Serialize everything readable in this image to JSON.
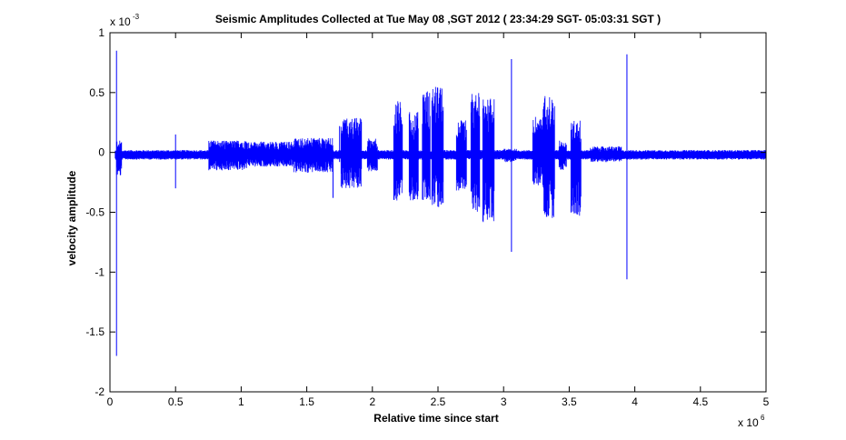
{
  "chart_data": {
    "type": "line",
    "title": "Seismic Amplitudes Collected at Tue May 08 ,SGT 2012 (  23:34:29 SGT- 05:03:31 SGT )",
    "xlabel": "Relative time since start",
    "ylabel": "velocity amplitude",
    "xlim": [
      0,
      5
    ],
    "ylim": [
      -2,
      1
    ],
    "x_ticks": [
      "0",
      "0.5",
      "1",
      "1.5",
      "2",
      "2.5",
      "3",
      "3.5",
      "4",
      "4.5",
      "5"
    ],
    "y_ticks": [
      "-2",
      "-1.5",
      "-1",
      "-0.5",
      "0",
      "0.5",
      "1"
    ],
    "x_multiplier": {
      "base": "x 10",
      "exponent": "6"
    },
    "y_multiplier": {
      "base": "x 10",
      "exponent": "-3"
    },
    "line_color": "#0000ff",
    "grid": false,
    "baseline": -0.02,
    "x_start": 0.04,
    "x_end": 5.0,
    "bursts": [
      {
        "x0": 0.05,
        "x1": 0.09,
        "max": 0.1,
        "min": -0.2
      },
      {
        "x0": 0.75,
        "x1": 1.05,
        "max": 0.1,
        "min": -0.15
      },
      {
        "x0": 1.05,
        "x1": 1.4,
        "max": 0.09,
        "min": -0.12
      },
      {
        "x0": 1.4,
        "x1": 1.7,
        "max": 0.12,
        "min": -0.17
      },
      {
        "x0": 1.76,
        "x1": 1.92,
        "max": 0.29,
        "min": -0.3
      },
      {
        "x0": 1.96,
        "x1": 2.04,
        "max": 0.12,
        "min": -0.16
      },
      {
        "x0": 2.16,
        "x1": 2.23,
        "max": 0.47,
        "min": -0.42
      },
      {
        "x0": 2.28,
        "x1": 2.35,
        "max": 0.34,
        "min": -0.4
      },
      {
        "x0": 2.38,
        "x1": 2.44,
        "max": 0.52,
        "min": -0.4
      },
      {
        "x0": 2.45,
        "x1": 2.54,
        "max": 0.55,
        "min": -0.46
      },
      {
        "x0": 2.64,
        "x1": 2.72,
        "max": 0.27,
        "min": -0.32
      },
      {
        "x0": 2.75,
        "x1": 2.82,
        "max": 0.5,
        "min": -0.5
      },
      {
        "x0": 2.84,
        "x1": 2.93,
        "max": 0.45,
        "min": -0.6
      },
      {
        "x0": 3.0,
        "x1": 3.1,
        "max": 0.03,
        "min": -0.08
      },
      {
        "x0": 3.22,
        "x1": 3.3,
        "max": 0.3,
        "min": -0.28
      },
      {
        "x0": 3.3,
        "x1": 3.39,
        "max": 0.48,
        "min": -0.55
      },
      {
        "x0": 3.42,
        "x1": 3.48,
        "max": 0.1,
        "min": -0.15
      },
      {
        "x0": 3.51,
        "x1": 3.59,
        "max": 0.27,
        "min": -0.53
      },
      {
        "x0": 3.66,
        "x1": 3.9,
        "max": 0.05,
        "min": -0.08
      }
    ],
    "spikes": [
      {
        "x": 0.05,
        "max": 0.85,
        "min": -1.7
      },
      {
        "x": 0.5,
        "max": 0.15,
        "min": -0.3
      },
      {
        "x": 1.75,
        "max": 0.22,
        "min": -0.08
      },
      {
        "x": 1.7,
        "max": 0.02,
        "min": -0.38
      },
      {
        "x": 3.06,
        "max": 0.78,
        "min": -0.83
      },
      {
        "x": 3.94,
        "max": 0.82,
        "min": -1.06
      }
    ]
  }
}
